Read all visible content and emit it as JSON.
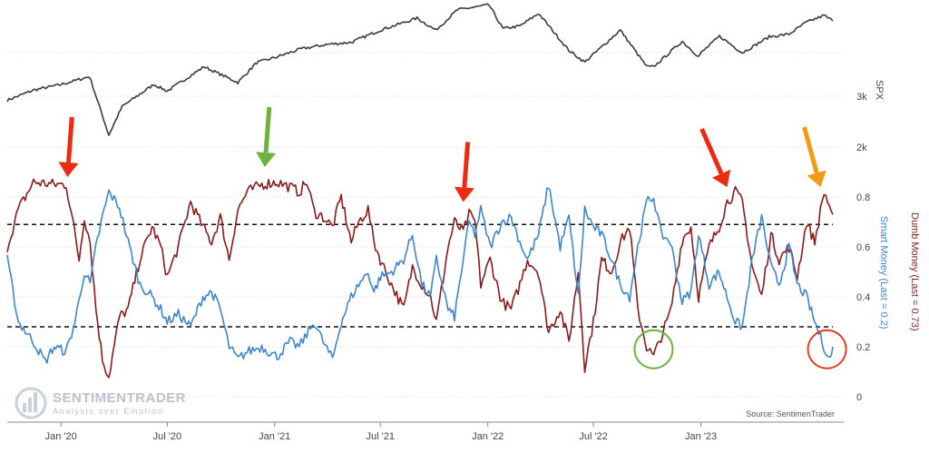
{
  "chart_data": {
    "type": "line",
    "title": "",
    "x_axis": {
      "tick_labels": [
        "Jan '20",
        "Jul '20",
        "Jan '21",
        "Jul '21",
        "Jan '22",
        "Jul '22",
        "Jan '23"
      ],
      "tick_dates": [
        "2020-01-01",
        "2020-07-01",
        "2021-01-01",
        "2021-07-01",
        "2022-01-01",
        "2022-07-01",
        "2023-01-01"
      ],
      "range": [
        "2019-10-01",
        "2023-08-15"
      ]
    },
    "right_axis_upper": {
      "label": "SPX",
      "tick_labels": [
        "2k",
        "3k"
      ],
      "tick_values": [
        2000,
        3000
      ]
    },
    "right_axis_lower": {
      "tick_labels": [
        "0",
        "0.2",
        "0.4",
        "0.6",
        "0.8"
      ],
      "tick_values": [
        0,
        0.2,
        0.4,
        0.6,
        0.8
      ],
      "range": [
        0,
        0.85
      ]
    },
    "right_axis_titles": {
      "dumb_money": "Dumb Money (Last = 0.73)",
      "smart_money": "Smart Money (Last = 0.2)"
    },
    "reference_lines": [
      0.69,
      0.28
    ],
    "source_text": "Source: SentimenTrader",
    "logo": {
      "title": "SENTIMENTRADER",
      "subtitle": "Analysis over Emotion"
    },
    "colors": {
      "spx": "#3a3a3a",
      "dumb_money": "#8b1a1a",
      "smart_money": "#3c86d0",
      "arrow_red": "#ee2a10",
      "arrow_green": "#6cb33e",
      "arrow_orange": "#f49a12",
      "circle_green": "#6cb33e",
      "circle_red": "#ea3b21"
    },
    "series": [
      {
        "name": "SPX",
        "axis": "upper",
        "x": [
          "2019-10-01",
          "2019-11-15",
          "2020-01-01",
          "2020-02-19",
          "2020-03-23",
          "2020-04-15",
          "2020-06-08",
          "2020-07-01",
          "2020-09-02",
          "2020-10-30",
          "2020-12-01",
          "2021-01-01",
          "2021-02-15",
          "2021-04-01",
          "2021-05-12",
          "2021-07-01",
          "2021-09-02",
          "2021-10-04",
          "2021-11-10",
          "2022-01-03",
          "2022-01-27",
          "2022-02-25",
          "2022-03-29",
          "2022-05-20",
          "2022-06-16",
          "2022-07-01",
          "2022-08-16",
          "2022-09-30",
          "2022-10-12",
          "2022-11-30",
          "2022-12-28",
          "2023-01-01",
          "2023-02-02",
          "2023-03-13",
          "2023-04-28",
          "2023-06-01",
          "2023-06-30",
          "2023-07-31",
          "2023-08-15"
        ],
        "values": [
          2920,
          3120,
          3230,
          3386,
          2237,
          2800,
          3232,
          3100,
          3580,
          3270,
          3660,
          3760,
          3930,
          4020,
          4060,
          4300,
          4535,
          4300,
          4700,
          4796,
          4330,
          4380,
          4630,
          3900,
          3670,
          3825,
          4300,
          3585,
          3577,
          4080,
          3780,
          3850,
          4180,
          3855,
          4170,
          4220,
          4450,
          4590,
          4480
        ]
      },
      {
        "name": "Dumb Money",
        "axis": "lower",
        "x": [
          "2019-10-01",
          "2019-10-20",
          "2019-11-15",
          "2019-12-20",
          "2020-01-10",
          "2020-01-20",
          "2020-02-01",
          "2020-02-10",
          "2020-02-20",
          "2020-03-01",
          "2020-03-12",
          "2020-03-23",
          "2020-04-10",
          "2020-04-25",
          "2020-05-15",
          "2020-06-05",
          "2020-06-20",
          "2020-07-01",
          "2020-07-20",
          "2020-08-10",
          "2020-08-31",
          "2020-09-15",
          "2020-09-30",
          "2020-10-15",
          "2020-10-30",
          "2020-11-15",
          "2020-12-10",
          "2021-01-05",
          "2021-01-27",
          "2021-02-12",
          "2021-02-25",
          "2021-03-10",
          "2021-03-25",
          "2021-04-10",
          "2021-04-25",
          "2021-05-12",
          "2021-05-25",
          "2021-06-10",
          "2021-06-20",
          "2021-07-01",
          "2021-07-20",
          "2021-08-10",
          "2021-08-25",
          "2021-09-10",
          "2021-09-25",
          "2021-10-05",
          "2021-10-25",
          "2021-11-05",
          "2021-11-20",
          "2021-11-30",
          "2021-12-10",
          "2021-12-20",
          "2022-01-05",
          "2022-01-25",
          "2022-02-10",
          "2022-02-25",
          "2022-03-10",
          "2022-03-29",
          "2022-04-15",
          "2022-05-05",
          "2022-05-20",
          "2022-06-05",
          "2022-06-16",
          "2022-07-01",
          "2022-07-15",
          "2022-08-01",
          "2022-08-16",
          "2022-09-01",
          "2022-09-15",
          "2022-09-30",
          "2022-10-12",
          "2022-10-25",
          "2022-11-10",
          "2022-11-30",
          "2022-12-15",
          "2022-12-28",
          "2023-01-15",
          "2023-02-01",
          "2023-02-15",
          "2023-03-01",
          "2023-03-13",
          "2023-03-30",
          "2023-04-15",
          "2023-05-01",
          "2023-05-15",
          "2023-06-01",
          "2023-06-15",
          "2023-07-01",
          "2023-07-15",
          "2023-07-31",
          "2023-08-15"
        ],
        "values": [
          0.6,
          0.75,
          0.86,
          0.85,
          0.85,
          0.72,
          0.55,
          0.72,
          0.62,
          0.35,
          0.15,
          0.08,
          0.32,
          0.35,
          0.55,
          0.68,
          0.6,
          0.48,
          0.6,
          0.78,
          0.68,
          0.62,
          0.72,
          0.55,
          0.75,
          0.82,
          0.85,
          0.86,
          0.84,
          0.82,
          0.86,
          0.74,
          0.72,
          0.68,
          0.8,
          0.62,
          0.7,
          0.75,
          0.62,
          0.55,
          0.45,
          0.35,
          0.52,
          0.45,
          0.4,
          0.3,
          0.6,
          0.7,
          0.66,
          0.73,
          0.7,
          0.45,
          0.55,
          0.38,
          0.35,
          0.45,
          0.55,
          0.5,
          0.26,
          0.35,
          0.22,
          0.5,
          0.12,
          0.3,
          0.55,
          0.5,
          0.62,
          0.68,
          0.35,
          0.2,
          0.16,
          0.24,
          0.34,
          0.63,
          0.68,
          0.4,
          0.6,
          0.68,
          0.78,
          0.82,
          0.78,
          0.52,
          0.4,
          0.65,
          0.55,
          0.6,
          0.48,
          0.7,
          0.62,
          0.82,
          0.73
        ]
      },
      {
        "name": "Smart Money",
        "axis": "lower",
        "x": [
          "2019-10-01",
          "2019-10-20",
          "2019-11-15",
          "2019-12-05",
          "2019-12-20",
          "2020-01-10",
          "2020-01-25",
          "2020-02-10",
          "2020-02-20",
          "2020-03-01",
          "2020-03-12",
          "2020-03-23",
          "2020-04-10",
          "2020-04-25",
          "2020-05-15",
          "2020-06-05",
          "2020-06-20",
          "2020-07-01",
          "2020-07-20",
          "2020-08-10",
          "2020-08-31",
          "2020-09-15",
          "2020-09-30",
          "2020-10-15",
          "2020-10-30",
          "2020-11-15",
          "2020-12-10",
          "2021-01-05",
          "2021-01-27",
          "2021-02-12",
          "2021-02-25",
          "2021-03-10",
          "2021-03-25",
          "2021-04-10",
          "2021-04-25",
          "2021-05-12",
          "2021-05-25",
          "2021-06-10",
          "2021-06-20",
          "2021-07-01",
          "2021-07-20",
          "2021-08-10",
          "2021-08-25",
          "2021-09-10",
          "2021-09-25",
          "2021-10-05",
          "2021-10-25",
          "2021-11-05",
          "2021-11-20",
          "2021-11-30",
          "2021-12-10",
          "2021-12-20",
          "2022-01-05",
          "2022-01-25",
          "2022-02-10",
          "2022-02-25",
          "2022-03-10",
          "2022-03-29",
          "2022-04-15",
          "2022-05-05",
          "2022-05-20",
          "2022-06-05",
          "2022-06-16",
          "2022-07-01",
          "2022-07-15",
          "2022-08-01",
          "2022-08-16",
          "2022-09-01",
          "2022-09-15",
          "2022-09-30",
          "2022-10-12",
          "2022-10-25",
          "2022-11-10",
          "2022-11-30",
          "2022-12-15",
          "2022-12-28",
          "2023-01-15",
          "2023-02-01",
          "2023-02-15",
          "2023-03-01",
          "2023-03-13",
          "2023-03-30",
          "2023-04-15",
          "2023-05-01",
          "2023-05-15",
          "2023-06-01",
          "2023-06-15",
          "2023-07-01",
          "2023-07-15",
          "2023-07-31",
          "2023-08-10",
          "2023-08-15"
        ],
        "values": [
          0.55,
          0.3,
          0.22,
          0.14,
          0.2,
          0.18,
          0.3,
          0.5,
          0.45,
          0.6,
          0.72,
          0.82,
          0.76,
          0.62,
          0.45,
          0.4,
          0.35,
          0.3,
          0.33,
          0.28,
          0.4,
          0.42,
          0.35,
          0.2,
          0.15,
          0.18,
          0.2,
          0.16,
          0.22,
          0.2,
          0.25,
          0.3,
          0.22,
          0.15,
          0.3,
          0.4,
          0.45,
          0.5,
          0.42,
          0.48,
          0.5,
          0.55,
          0.65,
          0.45,
          0.4,
          0.55,
          0.35,
          0.32,
          0.55,
          0.7,
          0.65,
          0.75,
          0.6,
          0.7,
          0.72,
          0.62,
          0.55,
          0.65,
          0.85,
          0.6,
          0.72,
          0.4,
          0.75,
          0.68,
          0.65,
          0.55,
          0.45,
          0.4,
          0.6,
          0.78,
          0.8,
          0.65,
          0.62,
          0.38,
          0.42,
          0.65,
          0.45,
          0.5,
          0.4,
          0.3,
          0.28,
          0.55,
          0.72,
          0.52,
          0.45,
          0.6,
          0.45,
          0.4,
          0.3,
          0.2,
          0.15,
          0.2
        ]
      }
    ],
    "annotations": [
      {
        "kind": "arrow",
        "color": "red",
        "target_date": "2020-01-12",
        "target_value": 0.88
      },
      {
        "kind": "arrow",
        "color": "green",
        "target_date": "2020-12-15",
        "target_value": 0.92
      },
      {
        "kind": "arrow",
        "color": "red",
        "target_date": "2021-11-20",
        "target_value": 0.78
      },
      {
        "kind": "arrow",
        "color": "red",
        "target_date": "2023-02-15",
        "target_value": 0.84
      },
      {
        "kind": "arrow",
        "color": "orange",
        "target_date": "2023-07-25",
        "target_value": 0.84
      },
      {
        "kind": "circle",
        "color": "green",
        "center_date": "2022-10-12",
        "center_value": 0.19
      },
      {
        "kind": "circle",
        "color": "red",
        "center_date": "2023-08-05",
        "center_value": 0.19
      }
    ]
  }
}
